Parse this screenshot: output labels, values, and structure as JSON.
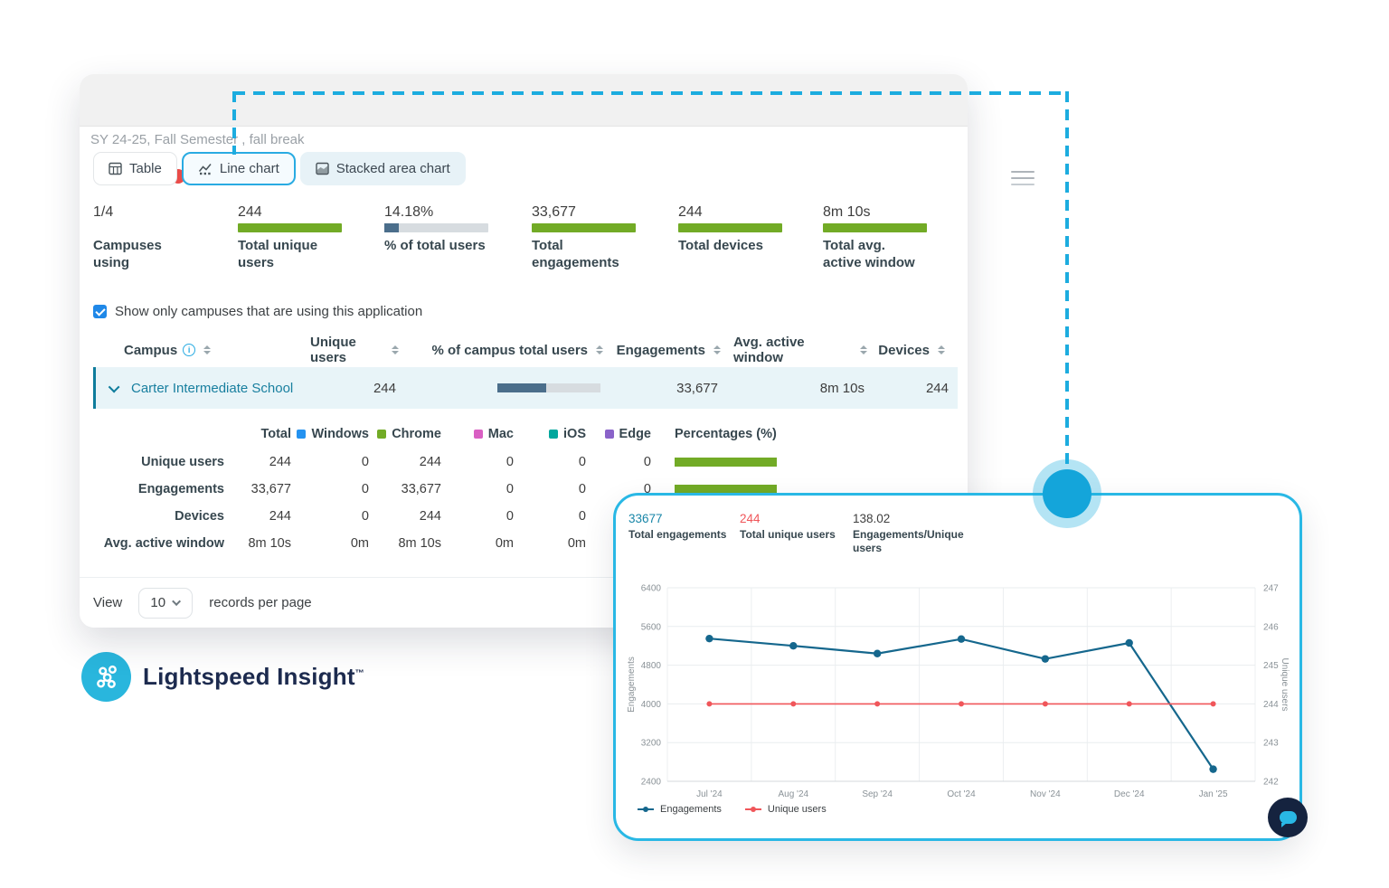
{
  "colors": {
    "accent": "#1cacdf",
    "green_bar": "#72ab26",
    "slate_bar": "#4b6e8b",
    "bar_track": "#d7dce0",
    "campus_link": "#187f9f",
    "navy": "#1d2b4f"
  },
  "window": {
    "filter_label": "SY 24-25, Fall Semester , fall break",
    "tabs": [
      {
        "label": "Table"
      },
      {
        "label": "Line chart"
      },
      {
        "label": "Stacked area chart"
      }
    ],
    "active_tab": "Line chart",
    "stats": [
      {
        "value": "1/4",
        "label": "Campuses using",
        "bar": "none"
      },
      {
        "value": "244",
        "label": "Total unique users",
        "bar": "green"
      },
      {
        "value": "14.18%",
        "label": "% of total users",
        "bar": "partial",
        "bar_pct": 14.18
      },
      {
        "value": "33,677",
        "label": "Total engagements",
        "bar": "green"
      },
      {
        "value": "244",
        "label": "Total devices",
        "bar": "green"
      },
      {
        "value": "8m 10s",
        "label": "Total avg. active window",
        "bar": "green"
      }
    ],
    "filter_checkbox": {
      "checked": true,
      "label": "Show only campuses that are using this application"
    },
    "table": {
      "columns": [
        "Campus",
        "Unique users",
        "% of campus total users",
        "Engagements",
        "Avg. active window",
        "Devices"
      ],
      "row": {
        "campus": "Carter Intermediate School",
        "unique_users": "244",
        "pct_bar_pct": 47,
        "engagements": "33,677",
        "avg_active_window": "8m 10s",
        "devices": "244"
      },
      "breakdown": {
        "total_label": "Total",
        "platforms": [
          {
            "label": "Windows",
            "color": "#2492f0"
          },
          {
            "label": "Chrome",
            "color": "#72ab26"
          },
          {
            "label": "Mac",
            "color": "#d95fc3"
          },
          {
            "label": "iOS",
            "color": "#00a79d"
          },
          {
            "label": "Edge",
            "color": "#8a63c9"
          }
        ],
        "percentages_label": "Percentages (%)",
        "rows": [
          {
            "label": "Unique users",
            "values": [
              "244",
              "0",
              "244",
              "0",
              "0",
              "0"
            ],
            "pct_bar": true
          },
          {
            "label": "Engagements",
            "values": [
              "33,677",
              "0",
              "33,677",
              "0",
              "0",
              "0"
            ],
            "pct_bar": true
          },
          {
            "label": "Devices",
            "values": [
              "244",
              "0",
              "244",
              "0",
              "0",
              ""
            ],
            "pct_bar": false
          },
          {
            "label": "Avg. active window",
            "values": [
              "8m 10s",
              "0m",
              "8m 10s",
              "0m",
              "0m",
              ""
            ],
            "pct_bar": false
          }
        ]
      }
    },
    "pagination": {
      "view_label": "View",
      "page_size": "10",
      "records_label": "records per page"
    }
  },
  "logo": {
    "name": "Lightspeed Insight",
    "trademark": "™"
  },
  "chart_panel": {
    "stats": [
      {
        "value": "33677",
        "label": "Total engagements",
        "value_color": "#1886a8"
      },
      {
        "value": "244",
        "label": "Total unique users",
        "value_color": "#f0565a"
      },
      {
        "value": "138.02",
        "label": "Engagements/Unique users",
        "value_color": "#3f3f3f"
      }
    ]
  },
  "chart_data": {
    "type": "line",
    "x": [
      "Jul '24",
      "Aug '24",
      "Sep '24",
      "Oct '24",
      "Nov '24",
      "Dec '24",
      "Jan '25"
    ],
    "series": [
      {
        "name": "Engagements",
        "axis": "left",
        "color": "#15678d",
        "values": [
          5350,
          5200,
          5040,
          5340,
          4930,
          5260,
          2650
        ]
      },
      {
        "name": "Unique users",
        "axis": "right",
        "color": "#f0565a",
        "values": [
          244,
          244,
          244,
          244,
          244,
          244,
          244
        ]
      }
    ],
    "left_axis": {
      "label": "Engagements",
      "min": 2400,
      "max": 6400,
      "ticks": [
        2400,
        3200,
        4000,
        4800,
        5600,
        6400
      ]
    },
    "right_axis": {
      "label": "Unique users",
      "min": 242,
      "max": 247,
      "ticks": [
        242,
        243,
        244,
        245,
        246,
        247
      ]
    },
    "grid": true,
    "legend_position": "bottom"
  }
}
